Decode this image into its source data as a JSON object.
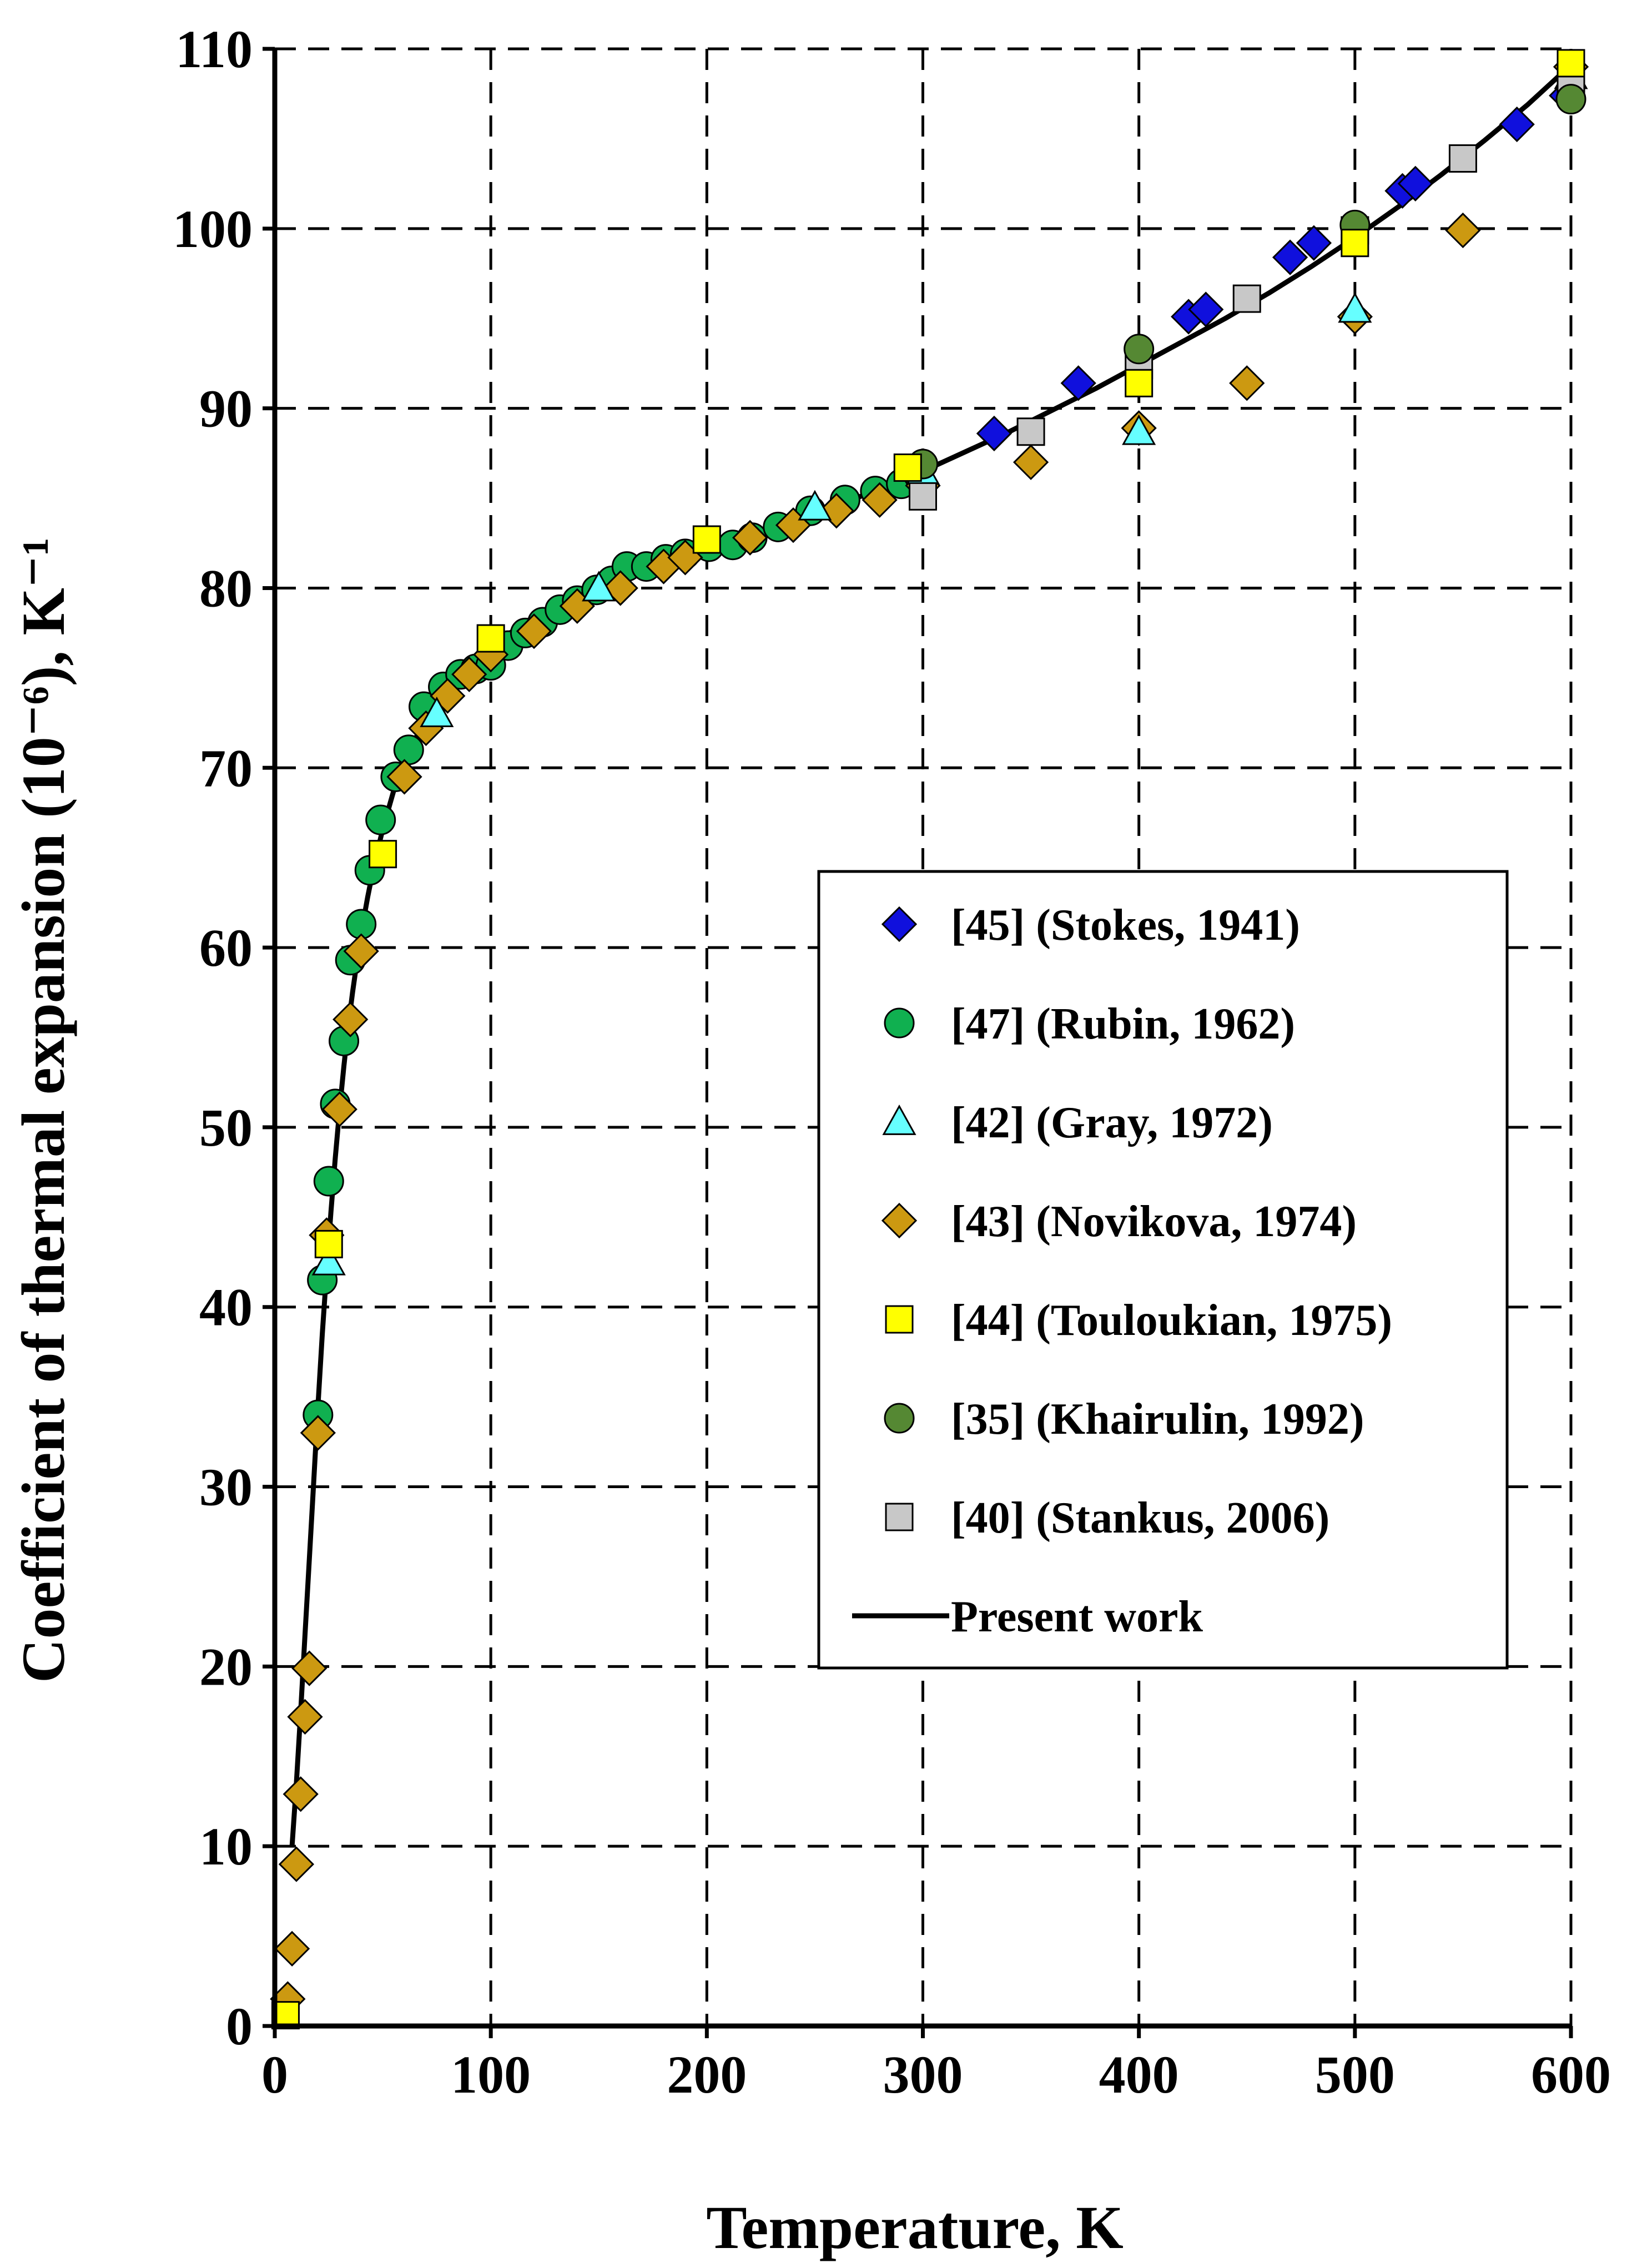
{
  "chart_data": {
    "type": "scatter",
    "title": "",
    "xlabel": "Temperature, K",
    "ylabel": "Coefficient of  thermal expansion (10⁻⁶), K⁻¹",
    "xlim": [
      0,
      600
    ],
    "ylim": [
      0,
      110
    ],
    "xticks": [
      0,
      100,
      200,
      300,
      400,
      500,
      600
    ],
    "yticks": [
      0,
      10,
      20,
      30,
      40,
      50,
      60,
      70,
      80,
      90,
      100,
      110
    ],
    "xtick_labels": [
      "0",
      "100",
      "200",
      "300",
      "400",
      "500",
      "600"
    ],
    "ytick_labels": [
      "0",
      "10",
      "20",
      "30",
      "40",
      "50",
      "60",
      "70",
      "80",
      "90",
      "100",
      "110"
    ],
    "grid": true,
    "legend_position": "right-middle",
    "series": [
      {
        "name": "[45] (Stokes, 1941)",
        "marker": "diamond",
        "color": "#1010dd",
        "x": [
          333,
          372,
          423,
          431,
          470,
          481,
          522,
          528,
          575,
          598
        ],
        "y": [
          88.6,
          91.4,
          95.1,
          95.5,
          98.4,
          99.2,
          102.1,
          102.5,
          105.8,
          107.4
        ]
      },
      {
        "name": "[47] (Rubin, 1962)",
        "marker": "circle",
        "color": "#10b050",
        "x": [
          20,
          22,
          25,
          28,
          32,
          35,
          40,
          44,
          49,
          56,
          62,
          69,
          78,
          86,
          93,
          100,
          108,
          116,
          124,
          132,
          140,
          149,
          156,
          163,
          172,
          181,
          190,
          201,
          212,
          221,
          233,
          248,
          264,
          278,
          290,
          298
        ],
        "y": [
          34.0,
          41.5,
          47.0,
          51.3,
          54.8,
          59.3,
          61.3,
          64.3,
          67.1,
          69.5,
          71.0,
          73.4,
          74.5,
          75.2,
          75.5,
          75.7,
          76.8,
          77.5,
          78.1,
          78.8,
          79.3,
          79.9,
          80.4,
          81.2,
          81.2,
          81.6,
          81.9,
          82.3,
          82.4,
          82.8,
          83.4,
          84.3,
          84.9,
          85.4,
          85.8,
          86.3
        ]
      },
      {
        "name": "[42] (Gray, 1972)",
        "marker": "triangle",
        "color": "#66ffff",
        "x": [
          25,
          75,
          150,
          250,
          300,
          400,
          500,
          600
        ],
        "y": [
          42.5,
          73.0,
          80.0,
          84.5,
          86.5,
          88.7,
          95.5,
          108.5
        ]
      },
      {
        "name": "[43] (Novikova, 1974)",
        "marker": "diamond",
        "color": "#cc9911",
        "x": [
          6,
          8,
          10,
          12,
          14,
          16,
          20,
          24,
          30,
          35,
          40,
          60,
          70,
          80,
          90,
          100,
          120,
          140,
          160,
          180,
          190,
          220,
          240,
          260,
          280,
          300,
          350,
          400,
          450,
          500,
          550,
          600
        ],
        "y": [
          1.5,
          4.3,
          9.0,
          12.9,
          17.2,
          19.9,
          33.0,
          44.0,
          51.0,
          56.0,
          59.8,
          69.5,
          72.2,
          74.0,
          75.2,
          76.3,
          77.6,
          79.0,
          80.0,
          81.2,
          81.7,
          82.8,
          83.5,
          84.3,
          84.9,
          85.7,
          87.0,
          88.9,
          91.4,
          95.1,
          99.9,
          109.0
        ]
      },
      {
        "name": "[44] (Touloukian, 1975)",
        "marker": "square",
        "color": "#ffff00",
        "x": [
          5,
          25,
          50,
          100,
          200,
          293,
          400,
          500,
          600
        ],
        "y": [
          0.6,
          43.5,
          65.2,
          77.2,
          82.7,
          86.7,
          91.4,
          99.2,
          109.2
        ]
      },
      {
        "name": "[35] (Khairulin, 1992)",
        "marker": "circle",
        "color": "#558833",
        "x": [
          300,
          400,
          500,
          600
        ],
        "y": [
          86.9,
          93.3,
          100.2,
          107.2
        ]
      },
      {
        "name": "[40] (Stankus, 2006)",
        "marker": "square",
        "color": "#c8c8c8",
        "x": [
          300,
          350,
          400,
          450,
          500,
          550,
          600
        ],
        "y": [
          85.1,
          88.7,
          92.4,
          96.1,
          99.9,
          103.9,
          107.8
        ]
      },
      {
        "name": "Present work",
        "marker": "line",
        "color": "#000000",
        "x": [
          8,
          10,
          12,
          14,
          16,
          18,
          20,
          22,
          24,
          26,
          28,
          30,
          32,
          34,
          36,
          38,
          40,
          43,
          46,
          50,
          55,
          60,
          65,
          70,
          75,
          80,
          90,
          100,
          110,
          120,
          130,
          140,
          150,
          160,
          170,
          180,
          190,
          200,
          220,
          240,
          260,
          280,
          300,
          320,
          340,
          360,
          380,
          400,
          420,
          440,
          460,
          480,
          500,
          520,
          540,
          560,
          580,
          600
        ],
        "y": [
          10.0,
          13.5,
          17.5,
          21.8,
          26.0,
          30.2,
          34.5,
          38.5,
          42.0,
          45.3,
          48.3,
          51.0,
          53.4,
          55.6,
          57.5,
          59.2,
          60.8,
          62.8,
          64.6,
          66.6,
          68.7,
          70.3,
          71.6,
          72.7,
          73.6,
          74.4,
          75.7,
          76.7,
          77.6,
          78.3,
          79.0,
          79.6,
          80.1,
          80.6,
          81.1,
          81.5,
          81.9,
          82.3,
          83.0,
          83.8,
          84.6,
          85.5,
          86.5,
          87.6,
          88.7,
          89.9,
          91.1,
          92.4,
          93.7,
          95.0,
          96.4,
          97.9,
          99.5,
          101.2,
          103.0,
          104.9,
          106.9,
          109.1
        ]
      }
    ]
  }
}
